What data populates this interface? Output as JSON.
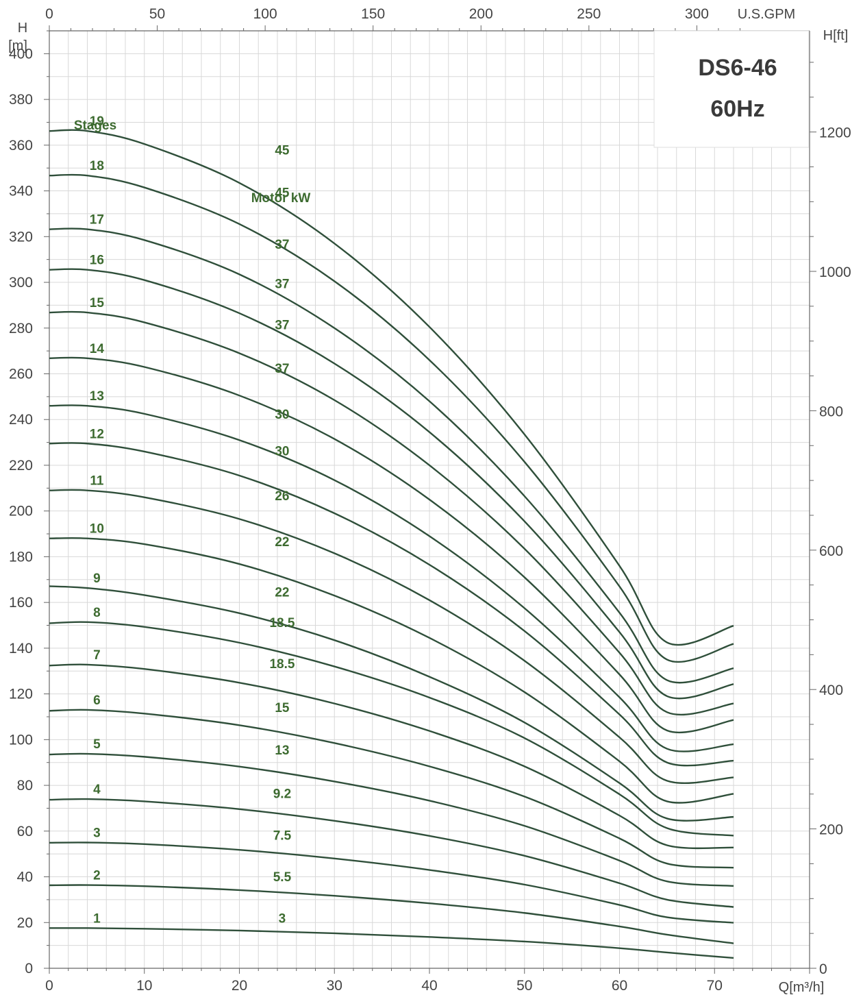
{
  "chart_data": {
    "type": "line",
    "title": "DS6-46",
    "subtitle": "60Hz",
    "xlabel": "Q[m³/h]",
    "ylabel_left_unit": "[m]",
    "ylabel_left": "H",
    "ylabel_right": "H[ft]",
    "x2label": "U.S.GPM",
    "xlim": [
      0,
      80
    ],
    "ylim": [
      0,
      410
    ],
    "x_ticks": [
      0,
      10,
      20,
      30,
      40,
      50,
      60,
      70
    ],
    "y_ticks": [
      0,
      20,
      40,
      60,
      80,
      100,
      120,
      140,
      160,
      180,
      200,
      220,
      240,
      260,
      280,
      300,
      320,
      340,
      360,
      380,
      400
    ],
    "x2_ticks": [
      0,
      50,
      100,
      150,
      200,
      250,
      300
    ],
    "y2_ticks": [
      0,
      200,
      400,
      600,
      800,
      1000,
      1200
    ],
    "grid": true,
    "stages_header": "Stages",
    "motor_header": "Motor kW",
    "x": [
      0,
      4,
      10,
      20,
      30,
      40,
      50,
      60,
      65,
      72
    ],
    "series": [
      {
        "stages": "1",
        "motor_kw": "3",
        "values": [
          17.6,
          17.6,
          17.3,
          16.5,
          15.3,
          13.7,
          11.7,
          8.8,
          6.9,
          4.5
        ]
      },
      {
        "stages": "2",
        "motor_kw": "5.5",
        "values": [
          36.3,
          36.4,
          35.9,
          34.2,
          31.7,
          28.4,
          24.2,
          18.3,
          14.7,
          10.9
        ]
      },
      {
        "stages": "3",
        "motor_kw": "7.5",
        "values": [
          54.9,
          55.0,
          54.3,
          51.8,
          48.0,
          43.0,
          36.6,
          27.7,
          22.3,
          19.9
        ]
      },
      {
        "stages": "4",
        "motor_kw": "9.2",
        "values": [
          73.7,
          74.0,
          73.0,
          69.6,
          64.5,
          57.9,
          49.2,
          37.2,
          30.0,
          26.8
        ]
      },
      {
        "stages": "5",
        "motor_kw": "13",
        "values": [
          93.5,
          93.8,
          92.5,
          88.2,
          81.7,
          73.3,
          62.3,
          47.1,
          38.0,
          36.0
        ]
      },
      {
        "stages": "6",
        "motor_kw": "15",
        "values": [
          112.6,
          113.0,
          111.4,
          106.3,
          98.5,
          88.3,
          75.1,
          56.8,
          45.8,
          44.0
        ]
      },
      {
        "stages": "7",
        "motor_kw": "18.5",
        "values": [
          132.4,
          132.8,
          130.9,
          124.9,
          115.8,
          103.8,
          88.3,
          66.8,
          53.8,
          52.8
        ]
      },
      {
        "stages": "8",
        "motor_kw": "18.5",
        "values": [
          150.9,
          151.4,
          149.3,
          142.4,
          132.0,
          118.4,
          100.7,
          76.1,
          61.3,
          58.0
        ]
      },
      {
        "stages": "9",
        "motor_kw": "22",
        "values": [
          167.1,
          166.3,
          163.2,
          155.3,
          143.5,
          127.5,
          107.5,
          81.0,
          65.5,
          66.2
        ]
      },
      {
        "stages": "10",
        "motor_kw": "22",
        "values": [
          188.0,
          188.0,
          185.5,
          176.8,
          163.0,
          144.5,
          120.8,
          90.5,
          73.0,
          76.3
        ]
      },
      {
        "stages": "11",
        "motor_kw": "26",
        "values": [
          209.0,
          209.0,
          206.0,
          196.5,
          181.5,
          161.0,
          134.5,
          101.0,
          82.0,
          83.5
        ]
      },
      {
        "stages": "12",
        "motor_kw": "30",
        "values": [
          229.5,
          229.5,
          226.0,
          215.5,
          199.0,
          176.5,
          147.5,
          111.0,
          90.0,
          90.8
        ]
      },
      {
        "stages": "13",
        "motor_kw": "30",
        "values": [
          246.0,
          246.0,
          242.5,
          231.0,
          213.5,
          189.0,
          157.5,
          118.5,
          96.0,
          98.0
        ]
      },
      {
        "stages": "14",
        "motor_kw": "37",
        "values": [
          266.8,
          266.8,
          263.0,
          250.5,
          231.5,
          205.0,
          171.0,
          128.5,
          104.0,
          108.6
        ]
      },
      {
        "stages": "15",
        "motor_kw": "37",
        "values": [
          286.8,
          286.8,
          282.5,
          269.0,
          248.5,
          220.0,
          183.5,
          138.0,
          112.0,
          115.8
        ]
      },
      {
        "stages": "16",
        "motor_kw": "37",
        "values": [
          305.5,
          305.5,
          301.0,
          286.5,
          264.5,
          234.5,
          195.5,
          147.0,
          119.0,
          124.3
        ]
      },
      {
        "stages": "17",
        "motor_kw": "37",
        "values": [
          323.2,
          323.2,
          318.5,
          303.5,
          280.0,
          248.0,
          206.5,
          155.5,
          126.0,
          131.2
        ]
      },
      {
        "stages": "18",
        "motor_kw": "45",
        "values": [
          346.7,
          346.7,
          341.5,
          325.5,
          300.5,
          266.0,
          221.5,
          167.0,
          135.0,
          141.9
        ]
      },
      {
        "stages": "19",
        "motor_kw": "45",
        "values": [
          366.2,
          366.2,
          360.5,
          343.5,
          317.0,
          280.5,
          233.5,
          176.0,
          142.5,
          149.8
        ]
      }
    ]
  }
}
